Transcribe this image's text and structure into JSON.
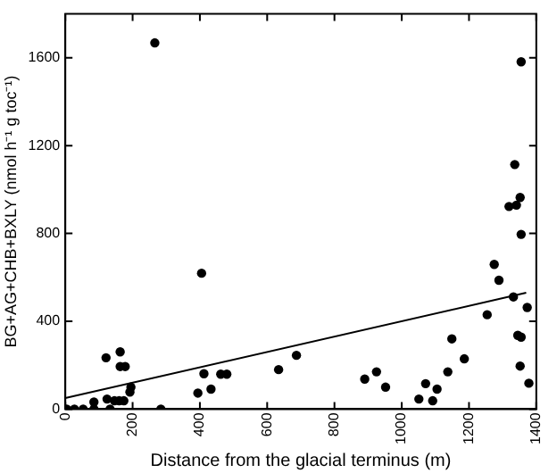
{
  "chart_data": {
    "type": "scatter",
    "xlabel": "Distance from the glacial terminus (m)",
    "ylabel": "BG+AG+CHB+BXLY (nmol h⁻¹ g toc⁻¹)",
    "xlim": [
      0,
      1400
    ],
    "xticks": [
      0,
      200,
      400,
      600,
      800,
      1000,
      1200,
      1400
    ],
    "ylim": [
      0,
      1800
    ],
    "yticks": [
      0,
      400,
      800,
      1200,
      1600
    ],
    "grid": false,
    "legend": false,
    "marker": "circle",
    "series": [
      {
        "color": "#000000",
        "x": [
          4,
          27,
          53,
          85,
          85,
          121,
          124,
          133,
          146,
          163,
          163,
          178,
          160,
          174,
          192,
          195,
          266,
          284,
          405,
          394,
          412,
          433,
          462,
          480,
          634,
          687,
          890,
          925,
          952,
          1051,
          1071,
          1092,
          1105,
          1137,
          1149,
          1186,
          1254,
          1275,
          1289,
          1319,
          1332,
          1336,
          1341,
          1345,
          1352,
          1355,
          1352,
          1355,
          1355,
          1373,
          1378
        ],
        "values": [
          0,
          0,
          0,
          32,
          0,
          234,
          46,
          0,
          38,
          261,
          194,
          194,
          38,
          38,
          78,
          100,
          1668,
          0,
          619,
          73,
          161,
          91,
          159,
          159,
          180,
          245,
          137,
          170,
          100,
          46,
          116,
          38,
          91,
          170,
          320,
          229,
          430,
          659,
          587,
          923,
          511,
          1114,
          929,
          336,
          964,
          328,
          196,
          796,
          1582,
          463,
          118
        ]
      },
      {
        "type": "line",
        "color": "#000000",
        "x": [
          0,
          1370
        ],
        "values": [
          50,
          530
        ],
        "marker": "none",
        "line_style": "solid"
      }
    ]
  }
}
